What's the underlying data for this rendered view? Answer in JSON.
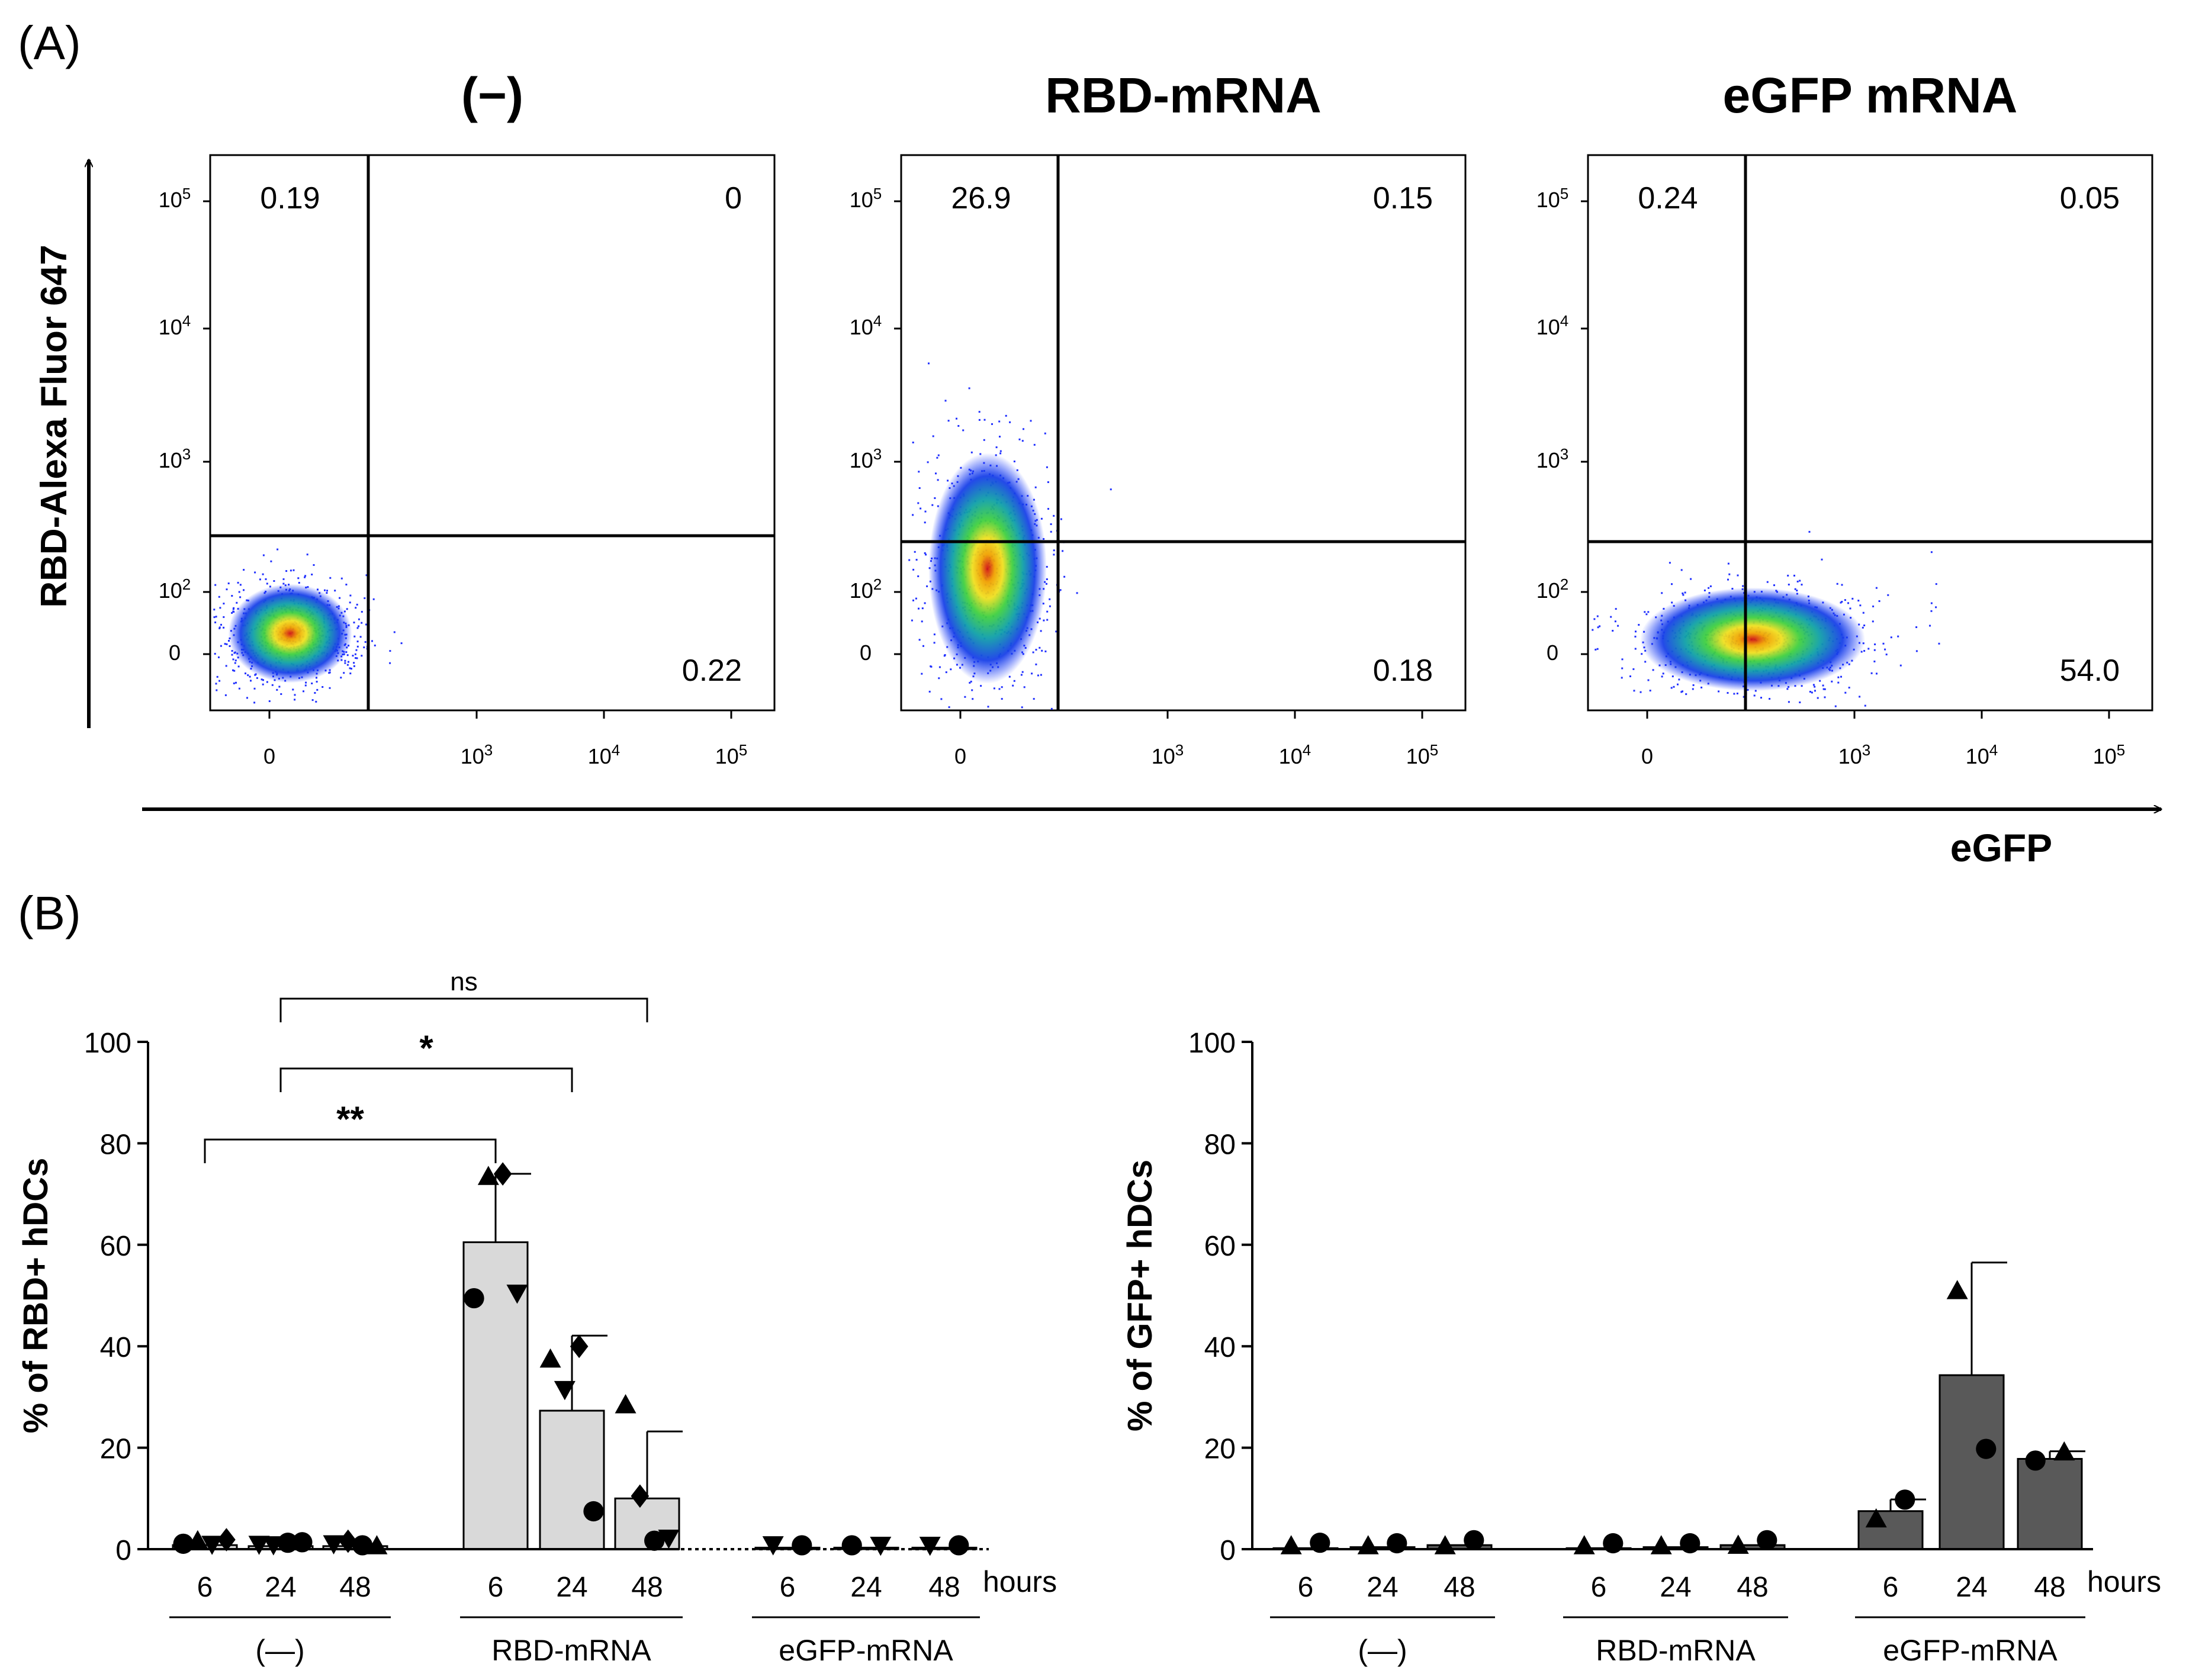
{
  "panel_a": {
    "label": "(A)",
    "y_axis_label": "RBD-Alexa Fluor 647",
    "x_axis_label": "eGFP",
    "plots": [
      {
        "title": "(−)",
        "quadrants": {
          "ul": "0.19",
          "ur": "0",
          "lr": "0.22"
        }
      },
      {
        "title": "RBD-mRNA",
        "quadrants": {
          "ul": "26.9",
          "ur": "0.15",
          "lr": "0.18"
        }
      },
      {
        "title": "eGFP mRNA",
        "quadrants": {
          "ul": "0.24",
          "ur": "0.05",
          "lr": "54.0"
        }
      }
    ]
  },
  "panel_b": {
    "label": "(B)"
  },
  "chart_data": [
    {
      "type": "bar",
      "ylabel": "% of RBD+ hDCs",
      "ylim": [
        0,
        100
      ],
      "yticks": [
        "0",
        "20",
        "40",
        "60",
        "80",
        "100"
      ],
      "x_unit": "hours",
      "groups": [
        "(—)",
        "RBD-mRNA",
        "eGFP-mRNA"
      ],
      "timepoints": [
        "6",
        "24",
        "48"
      ],
      "bars": [
        {
          "group": "(—)",
          "time": "6",
          "mean": 0.8,
          "sd": 0
        },
        {
          "group": "(—)",
          "time": "24",
          "mean": 0.6,
          "sd": 0
        },
        {
          "group": "(—)",
          "time": "48",
          "mean": 0.6,
          "sd": 0
        },
        {
          "group": "RBD-mRNA",
          "time": "6",
          "mean": 60.5,
          "sd": 13.5
        },
        {
          "group": "RBD-mRNA",
          "time": "24",
          "mean": 27.3,
          "sd": 14.8
        },
        {
          "group": "RBD-mRNA",
          "time": "48",
          "mean": 10,
          "sd": 13.2
        },
        {
          "group": "eGFP-mRNA",
          "time": "6",
          "mean": 0.3,
          "sd": 0
        },
        {
          "group": "eGFP-mRNA",
          "time": "24",
          "mean": 0.3,
          "sd": 0
        },
        {
          "group": "eGFP-mRNA",
          "time": "48",
          "mean": 0.3,
          "sd": 0
        }
      ],
      "points": [
        {
          "bar": 0,
          "shape": "circle",
          "y": 0.6
        },
        {
          "bar": 0,
          "shape": "triangle-up",
          "y": 1.2
        },
        {
          "bar": 0,
          "shape": "triangle-down",
          "y": 0.5
        },
        {
          "bar": 0,
          "shape": "diamond",
          "y": 1.4
        },
        {
          "bar": 1,
          "shape": "triangle-down",
          "y": 0.5
        },
        {
          "bar": 1,
          "shape": "triangle-down",
          "y": 0.4
        },
        {
          "bar": 1,
          "shape": "circle",
          "y": 0.8
        },
        {
          "bar": 1,
          "shape": "circle",
          "y": 0.9
        },
        {
          "bar": 2,
          "shape": "triangle-down",
          "y": 0.6
        },
        {
          "bar": 2,
          "shape": "diamond",
          "y": 1.1
        },
        {
          "bar": 2,
          "shape": "circle",
          "y": 0.3
        },
        {
          "bar": 2,
          "shape": "triangle-up",
          "y": 0.2
        },
        {
          "bar": 3,
          "shape": "circle",
          "y": 49
        },
        {
          "bar": 3,
          "shape": "triangle-up",
          "y": 73
        },
        {
          "bar": 3,
          "shape": "diamond",
          "y": 73.5
        },
        {
          "bar": 3,
          "shape": "triangle-down",
          "y": 50
        },
        {
          "bar": 4,
          "shape": "triangle-up",
          "y": 37
        },
        {
          "bar": 4,
          "shape": "triangle-down",
          "y": 31
        },
        {
          "bar": 4,
          "shape": "diamond",
          "y": 39.5
        },
        {
          "bar": 4,
          "shape": "circle",
          "y": 7
        },
        {
          "bar": 5,
          "shape": "triangle-up",
          "y": 28
        },
        {
          "bar": 5,
          "shape": "diamond",
          "y": 10
        },
        {
          "bar": 5,
          "shape": "circle",
          "y": 1.2
        },
        {
          "bar": 5,
          "shape": "triangle-down",
          "y": 1.7
        },
        {
          "bar": 6,
          "shape": "triangle-down",
          "y": 0.4
        },
        {
          "bar": 6,
          "shape": "circle",
          "y": 0.3
        },
        {
          "bar": 7,
          "shape": "circle",
          "y": 0.3
        },
        {
          "bar": 7,
          "shape": "triangle-down",
          "y": 0.3
        },
        {
          "bar": 8,
          "shape": "triangle-down",
          "y": 0.3
        },
        {
          "bar": 8,
          "shape": "circle",
          "y": 0.3
        }
      ],
      "significance": [
        {
          "from": 0,
          "to": 3,
          "label": "**"
        },
        {
          "from": 1,
          "to": 4,
          "label": "*"
        },
        {
          "from": 1,
          "to": 5,
          "label": "ns"
        }
      ]
    },
    {
      "type": "bar",
      "ylabel": "% of GFP+ hDCs",
      "ylim": [
        0,
        100
      ],
      "yticks": [
        "0",
        "20",
        "40",
        "60",
        "80",
        "100"
      ],
      "x_unit": "hours",
      "groups": [
        "(—)",
        "RBD-mRNA",
        "eGFP-mRNA"
      ],
      "timepoints": [
        "6",
        "24",
        "48"
      ],
      "bars": [
        {
          "group": "(—)",
          "time": "6",
          "mean": 0.2,
          "sd": 0
        },
        {
          "group": "(—)",
          "time": "24",
          "mean": 0.4,
          "sd": 0
        },
        {
          "group": "(—)",
          "time": "48",
          "mean": 0.8,
          "sd": 0
        },
        {
          "group": "RBD-mRNA",
          "time": "6",
          "mean": 0.2,
          "sd": 0
        },
        {
          "group": "RBD-mRNA",
          "time": "24",
          "mean": 0.4,
          "sd": 0
        },
        {
          "group": "RBD-mRNA",
          "time": "48",
          "mean": 0.8,
          "sd": 0
        },
        {
          "group": "eGFP-mRNA",
          "time": "6",
          "mean": 7.5,
          "sd": 2.3
        },
        {
          "group": "eGFP-mRNA",
          "time": "24",
          "mean": 34.3,
          "sd": 22.2
        },
        {
          "group": "eGFP-mRNA",
          "time": "48",
          "mean": 17.8,
          "sd": 1.5
        }
      ],
      "points": [
        {
          "bar": 0,
          "shape": "triangle-up",
          "y": 0.2
        },
        {
          "bar": 0,
          "shape": "circle",
          "y": 0.8
        },
        {
          "bar": 1,
          "shape": "triangle-up",
          "y": 0.2
        },
        {
          "bar": 1,
          "shape": "circle",
          "y": 0.7
        },
        {
          "bar": 2,
          "shape": "triangle-up",
          "y": 0.2
        },
        {
          "bar": 2,
          "shape": "circle",
          "y": 1.3
        },
        {
          "bar": 3,
          "shape": "triangle-up",
          "y": 0.2
        },
        {
          "bar": 3,
          "shape": "circle",
          "y": 0.7
        },
        {
          "bar": 4,
          "shape": "triangle-up",
          "y": 0.2
        },
        {
          "bar": 4,
          "shape": "circle",
          "y": 0.7
        },
        {
          "bar": 5,
          "shape": "triangle-up",
          "y": 0.3
        },
        {
          "bar": 5,
          "shape": "circle",
          "y": 1.3
        },
        {
          "bar": 6,
          "shape": "triangle-up",
          "y": 5.5
        },
        {
          "bar": 6,
          "shape": "circle",
          "y": 9.3
        },
        {
          "bar": 7,
          "shape": "triangle-up",
          "y": 50.5
        },
        {
          "bar": 7,
          "shape": "circle",
          "y": 19.3
        },
        {
          "bar": 8,
          "shape": "circle",
          "y": 17
        },
        {
          "bar": 8,
          "shape": "triangle-up",
          "y": 18.7
        }
      ],
      "significance": []
    }
  ]
}
